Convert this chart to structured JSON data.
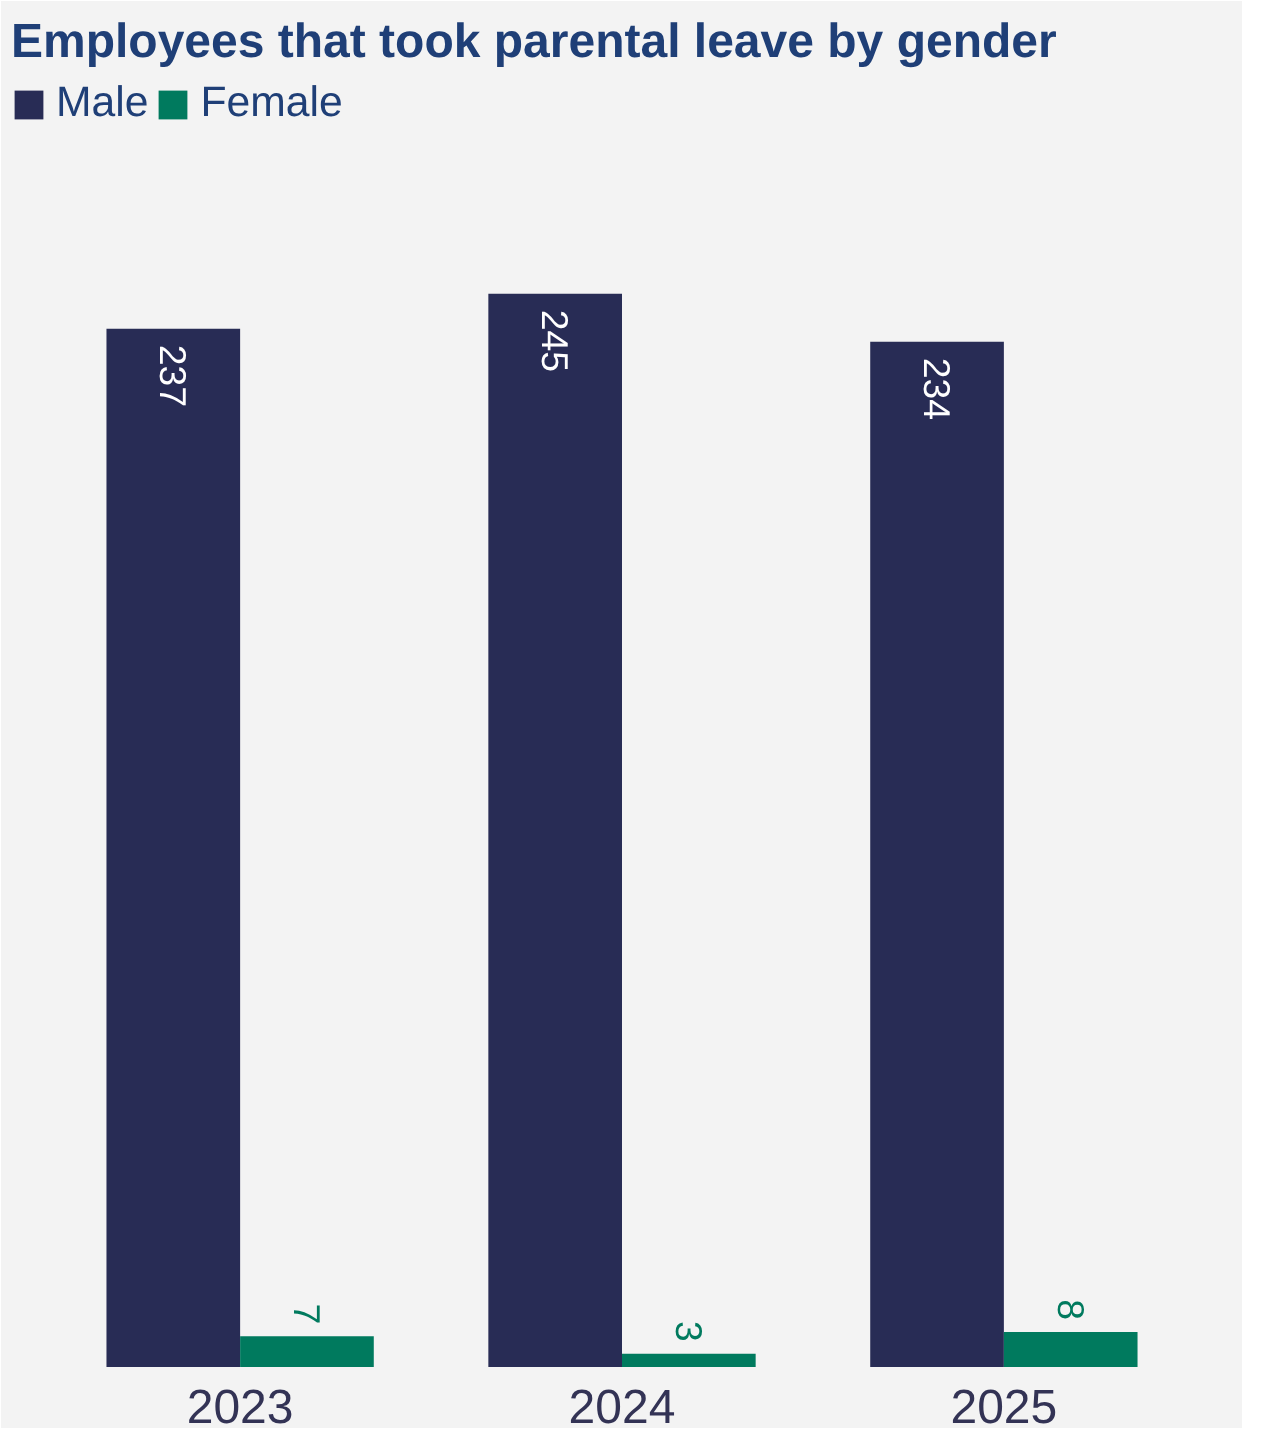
{
  "chart_data": {
    "type": "bar",
    "title": "Employees that took parental leave by gender",
    "categories": [
      "2023",
      "2024",
      "2025"
    ],
    "series": [
      {
        "name": "Male",
        "color": "#282c55",
        "values": [
          237,
          245,
          234
        ]
      },
      {
        "name": "Female",
        "color": "#007a5e",
        "values": [
          7,
          3,
          8
        ]
      }
    ],
    "data_labels": true,
    "legend": "top left",
    "grid": false
  }
}
